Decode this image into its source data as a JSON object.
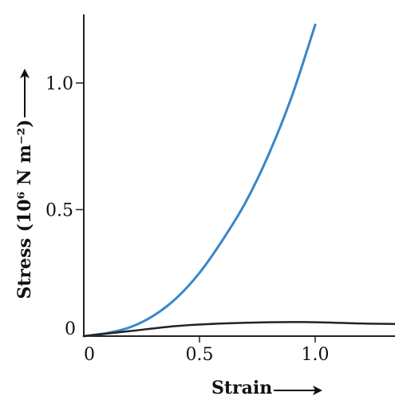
{
  "chart_data": {
    "type": "line",
    "title": "",
    "xlabel": "Strain",
    "ylabel": "Stress (10⁶ N m⁻²)",
    "xlim": [
      0,
      1.35
    ],
    "ylim": [
      0,
      1.3
    ],
    "xticks": [
      0,
      0.5,
      1.0
    ],
    "xtick_labels": [
      "0",
      "0.5",
      "1.0"
    ],
    "yticks": [
      0,
      0.5,
      1.0
    ],
    "ytick_labels": [
      "0",
      "0.5",
      "1.0"
    ],
    "grid": false,
    "legend": "none",
    "series": [
      {
        "color": "#3a86c8",
        "x": [
          0,
          0.1,
          0.2,
          0.3,
          0.4,
          0.5,
          0.6,
          0.7,
          0.8,
          0.9,
          1.0
        ],
        "y": [
          0,
          0.012,
          0.035,
          0.08,
          0.15,
          0.25,
          0.38,
          0.53,
          0.72,
          0.95,
          1.23
        ]
      },
      {
        "color": "#222222",
        "x": [
          0,
          0.2,
          0.4,
          0.6,
          0.8,
          1.0,
          1.2,
          1.35
        ],
        "y": [
          0,
          0.02,
          0.04,
          0.05,
          0.055,
          0.055,
          0.05,
          0.048
        ]
      }
    ]
  }
}
